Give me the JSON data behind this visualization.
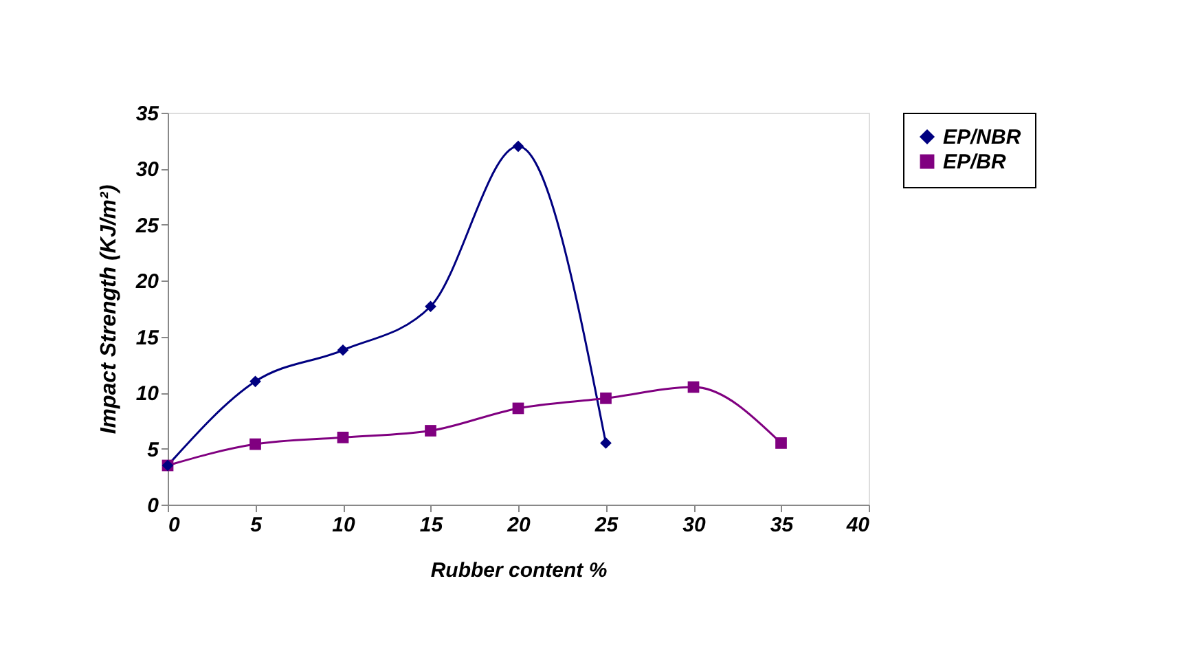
{
  "chart_data": {
    "type": "line",
    "xlabel": "Rubber content %",
    "ylabel": "Impact Strength (KJ/m²)",
    "x": [
      0,
      5,
      10,
      15,
      20,
      25,
      30,
      35
    ],
    "series": [
      {
        "name": "EP/NBR",
        "color": "#000080",
        "marker": "diamond",
        "values": [
          3.5,
          11,
          13.8,
          17.7,
          32,
          5.5,
          null,
          null
        ]
      },
      {
        "name": "EP/BR",
        "color": "#800080",
        "marker": "square",
        "values": [
          3.5,
          5.4,
          6,
          6.6,
          8.6,
          9.5,
          10.5,
          5.5
        ]
      }
    ],
    "xlim": [
      0,
      40
    ],
    "xticks": [
      0,
      5,
      10,
      15,
      20,
      25,
      30,
      35,
      40
    ],
    "ylim": [
      0,
      35
    ],
    "yticks": [
      0,
      5,
      10,
      15,
      20,
      25,
      30,
      35
    ],
    "grid": false,
    "legend": "top right",
    "line_style": "solid"
  }
}
